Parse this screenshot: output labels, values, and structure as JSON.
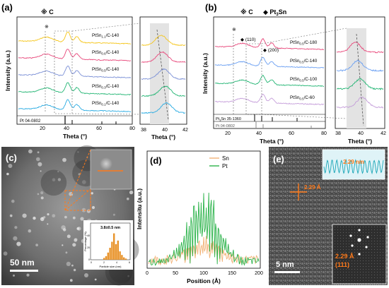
{
  "panel_a": {
    "label": "(a)",
    "legend_symbol": "※ C",
    "samples": [
      {
        "name": "PtSn",
        "sub": "1.1",
        "suffix": "/C-140",
        "color": "#f5c518"
      },
      {
        "name": "PtSn",
        "sub": "0.6",
        "suffix": "/C-140",
        "color": "#e8477a"
      },
      {
        "name": "PtSn",
        "sub": "0.5",
        "suffix": "/C-140",
        "color": "#7a8fd6"
      },
      {
        "name": "PtSn",
        "sub": "0.3",
        "suffix": "/C-140",
        "color": "#22b573"
      },
      {
        "name": "PtSn",
        "sub": "0.1",
        "suffix": "/C-140",
        "color": "#29abe2"
      }
    ],
    "reference": "Pt 04-0802",
    "xlabel": "Theta (°)",
    "ylabel": "Intensity (a.u.)",
    "xticks": [
      "20",
      "40",
      "60",
      "80"
    ],
    "inset_xlabel": "Theta (°)",
    "inset_xticks": [
      "38",
      "40",
      "42"
    ]
  },
  "panel_b": {
    "label": "(b)",
    "legend_symbol_c": "※ C",
    "legend_symbol_pt3sn": "◆ Pt",
    "legend_sub_3": "3",
    "legend_sn": "Sn",
    "peak_110": "(110)",
    "peak_200": "(200)",
    "samples": [
      {
        "name": "PtSn",
        "sub": "0.5",
        "suffix": "/C-180",
        "color": "#e8477a"
      },
      {
        "name": "PtSn",
        "sub": "0.5",
        "suffix": "/C-140",
        "color": "#6a9ff2"
      },
      {
        "name": "PtSn",
        "sub": "0.5",
        "suffix": "/C-100",
        "color": "#22b573"
      },
      {
        "name": "PtSn",
        "sub": "0.5",
        "suffix": "/C-60",
        "color": "#c49cd9"
      }
    ],
    "reference_1": "Pt",
    "reference_1_sub": "3",
    "reference_1_rest": "Sn 35-1360",
    "reference_2": "Pt 04-0802",
    "xlabel": "Theta (°)",
    "ylabel": "Intensity (a.u.)",
    "xticks": [
      "20",
      "40",
      "60",
      "80"
    ],
    "inset_xlabel": "Theta (°)",
    "inset_xticks": [
      "38",
      "40",
      "42"
    ]
  },
  "panel_c": {
    "label": "(c)",
    "scalebar": "50 nm",
    "histogram": {
      "title": "3.8±0.5 nm",
      "xlabel": "Particle size (nm)",
      "ylabel": "Percentage (%)",
      "xticks": [
        "0",
        "2",
        "4",
        "6"
      ],
      "yticks": [
        "0",
        "20",
        "40"
      ],
      "color": "#e8932a"
    }
  },
  "panel_d": {
    "label": "(d)",
    "xlabel": "Position (Å)",
    "ylabel": "Intensitu (a.u.)",
    "xticks": [
      "0",
      "50",
      "100",
      "150",
      "200"
    ],
    "legend": [
      {
        "name": "Sn",
        "color": "#f2b277"
      },
      {
        "name": "Pt",
        "color": "#2bb34a"
      }
    ]
  },
  "panel_e": {
    "label": "(e)",
    "lattice_label": "2.29 Å",
    "profile_label": "2.29 nm",
    "fft_label_1": "2.29 Å",
    "fft_label_2": "(111)",
    "scalebar": "5 nm",
    "accent": "#ff7a1a"
  }
}
